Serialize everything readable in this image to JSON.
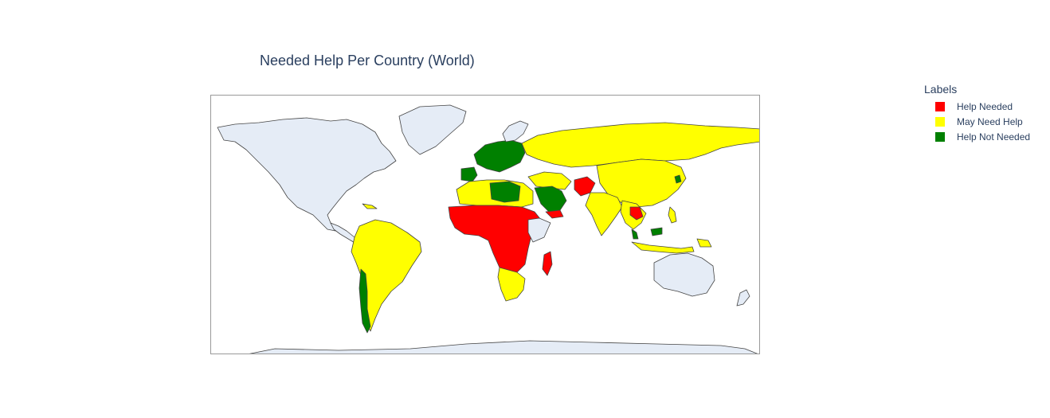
{
  "title": "Needed Help Per Country (World)",
  "chart_data": {
    "type": "choropleth",
    "projection": "equirectangular",
    "scope": "world",
    "legend": {
      "title": "Labels",
      "placement": "top-right",
      "entries": [
        {
          "label": "Help Needed",
          "color": "#ff0000"
        },
        {
          "label": "May Need Help",
          "color": "#ffff00"
        },
        {
          "label": "Help Not Needed",
          "color": "#008000"
        }
      ]
    },
    "no_data_color": "#e5ecf6",
    "border_color": "#444444",
    "regions": [
      {
        "region": "Sub-Saharan Africa (Sahel, Central & East)",
        "label": "Help Needed"
      },
      {
        "region": "Madagascar",
        "label": "Help Needed"
      },
      {
        "region": "Afghanistan",
        "label": "Help Needed"
      },
      {
        "region": "Yemen",
        "label": "Help Needed"
      },
      {
        "region": "Laos / Cambodia",
        "label": "Help Needed"
      },
      {
        "region": "Russia & Central Asia",
        "label": "May Need Help"
      },
      {
        "region": "China & Mongolia",
        "label": "May Need Help"
      },
      {
        "region": "South America",
        "label": "May Need Help"
      },
      {
        "region": "Southern Africa",
        "label": "May Need Help"
      },
      {
        "region": "India & South Asia",
        "label": "May Need Help"
      },
      {
        "region": "Southeast Asia",
        "label": "May Need Help"
      },
      {
        "region": "North Africa (Morocco, Egypt)",
        "label": "May Need Help"
      },
      {
        "region": "Middle East",
        "label": "May Need Help"
      },
      {
        "region": "Western & Central Europe",
        "label": "Help Not Needed"
      },
      {
        "region": "Spain",
        "label": "Help Not Needed"
      },
      {
        "region": "Libya / Algeria",
        "label": "Help Not Needed"
      },
      {
        "region": "Saudi Arabia",
        "label": "Help Not Needed"
      },
      {
        "region": "Chile",
        "label": "Help Not Needed"
      },
      {
        "region": "South Korea",
        "label": "Help Not Needed"
      },
      {
        "region": "Malaysia",
        "label": "Help Not Needed"
      },
      {
        "region": "North America",
        "label": null
      },
      {
        "region": "Greenland",
        "label": null
      },
      {
        "region": "Australia",
        "label": null
      },
      {
        "region": "Antarctica",
        "label": null
      }
    ]
  }
}
